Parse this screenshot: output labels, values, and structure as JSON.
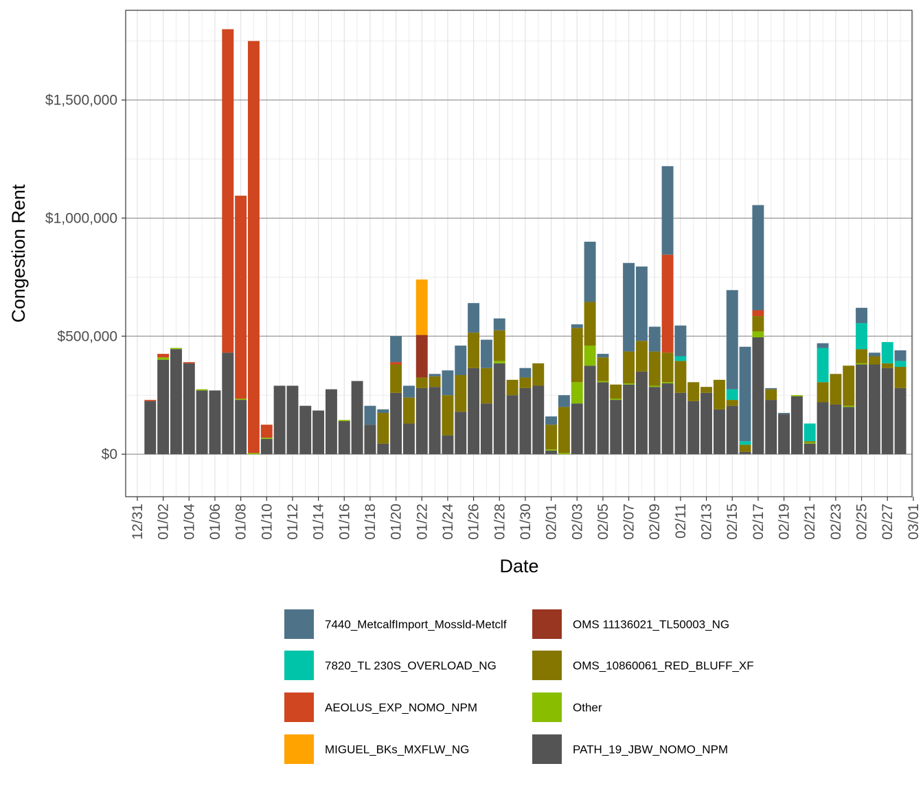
{
  "chart_data": {
    "type": "bar",
    "stacked": true,
    "xlabel": "Date",
    "ylabel": "Congestion Rent",
    "ylim": [
      -180000,
      1880000
    ],
    "yticks": [
      0,
      500000,
      1000000,
      1500000
    ],
    "ytick_labels": [
      "$0",
      "$500,000",
      "$1,000,000",
      "$1,500,000"
    ],
    "x_range_days": [
      -0.9,
      59.9
    ],
    "xticks": [
      0,
      2,
      4,
      6,
      8,
      10,
      12,
      14,
      16,
      18,
      20,
      22,
      24,
      26,
      28,
      30,
      32,
      34,
      36,
      38,
      40,
      42,
      44,
      46,
      48,
      50,
      52,
      54,
      56,
      58,
      60
    ],
    "xtick_labels": [
      "12/31",
      "01/02",
      "01/04",
      "01/06",
      "01/08",
      "01/10",
      "01/12",
      "01/14",
      "01/16",
      "01/18",
      "01/20",
      "01/22",
      "01/24",
      "01/26",
      "01/28",
      "01/30",
      "02/01",
      "02/03",
      "02/05",
      "02/07",
      "02/09",
      "02/11",
      "02/13",
      "02/15",
      "02/17",
      "02/19",
      "02/21",
      "02/23",
      "02/25",
      "02/27",
      "03/01"
    ],
    "grid": true,
    "legend_position": "bottom",
    "colors": {
      "7440_MetcalfImport_Mossld-Metclf": "#4e7389",
      "7820_TL 230S_OVERLOAD_NG": "#00c4aa",
      "AEOLUS_EXP_NOMO_NPM": "#d04621",
      "MIGUEL_BKs_MXFLW_NG": "#ffa300",
      "OMS 11136021_TL50003_NG": "#983622",
      "OMS_10860061_RED_BLUFF_XF": "#857600",
      "Other": "#88bd00",
      "PATH_19_JBW_NOMO_NPM": "#545454"
    },
    "legend_entries": [
      "7440_MetcalfImport_Mossld-Metclf",
      "7820_TL 230S_OVERLOAD_NG",
      "AEOLUS_EXP_NOMO_NPM",
      "MIGUEL_BKs_MXFLW_NG",
      "OMS 11136021_TL50003_NG",
      "OMS_10860061_RED_BLUFF_XF",
      "Other",
      "PATH_19_JBW_NOMO_NPM"
    ],
    "stack_order": [
      "PATH_19_JBW_NOMO_NPM",
      "Other",
      "OMS_10860061_RED_BLUFF_XF",
      "OMS 11136021_TL50003_NG",
      "MIGUEL_BKs_MXFLW_NG",
      "AEOLUS_EXP_NOMO_NPM",
      "7820_TL 230S_OVERLOAD_NG",
      "7440_MetcalfImport_Mossld-Metclf"
    ],
    "dates": [
      "01/01",
      "01/02",
      "01/03",
      "01/04",
      "01/05",
      "01/06",
      "01/07",
      "01/08",
      "01/09",
      "01/10",
      "01/11",
      "01/12",
      "01/13",
      "01/14",
      "01/15",
      "01/16",
      "01/17",
      "01/18",
      "01/19",
      "01/20",
      "01/21",
      "01/22",
      "01/23",
      "01/24",
      "01/25",
      "01/26",
      "01/27",
      "01/28",
      "01/29",
      "01/30",
      "01/31",
      "02/01",
      "02/02",
      "02/03",
      "02/04",
      "02/05",
      "02/06",
      "02/07",
      "02/08",
      "02/09",
      "02/10",
      "02/11",
      "02/12",
      "02/13",
      "02/14",
      "02/15",
      "02/16",
      "02/17",
      "02/18",
      "02/19",
      "02/20",
      "02/21",
      "02/22",
      "02/23",
      "02/24",
      "02/25",
      "02/26",
      "02/27",
      "02/28"
    ],
    "series": [
      {
        "name": "PATH_19_JBW_NOMO_NPM",
        "values": [
          225000,
          400000,
          445000,
          385000,
          270000,
          270000,
          430000,
          230000,
          0,
          65000,
          290000,
          290000,
          205000,
          185000,
          275000,
          140000,
          310000,
          125000,
          45000,
          260000,
          130000,
          280000,
          285000,
          80000,
          180000,
          365000,
          215000,
          385000,
          250000,
          280000,
          290000,
          15000,
          0,
          215000,
          375000,
          305000,
          230000,
          295000,
          350000,
          285000,
          300000,
          260000,
          225000,
          260000,
          190000,
          205000,
          10000,
          495000,
          230000,
          170000,
          245000,
          45000,
          220000,
          210000,
          200000,
          380000,
          380000,
          365000,
          280000
        ]
      },
      {
        "name": "Other",
        "values": [
          0,
          10000,
          5000,
          0,
          5000,
          0,
          0,
          5000,
          5000,
          5000,
          0,
          0,
          0,
          0,
          0,
          5000,
          0,
          0,
          0,
          0,
          0,
          0,
          0,
          0,
          0,
          0,
          0,
          10000,
          0,
          0,
          0,
          5000,
          5000,
          90000,
          85000,
          5000,
          5000,
          5000,
          0,
          5000,
          5000,
          0,
          0,
          0,
          0,
          0,
          0,
          25000,
          0,
          0,
          5000,
          5000,
          0,
          0,
          5000,
          5000,
          0,
          0,
          0
        ]
      },
      {
        "name": "OMS_10860061_RED_BLUFF_XF",
        "values": [
          0,
          0,
          0,
          0,
          0,
          0,
          0,
          0,
          0,
          0,
          0,
          0,
          0,
          0,
          0,
          0,
          0,
          0,
          130000,
          120000,
          110000,
          45000,
          45000,
          170000,
          155000,
          150000,
          150000,
          130000,
          65000,
          45000,
          95000,
          105000,
          195000,
          230000,
          185000,
          100000,
          60000,
          135000,
          130000,
          145000,
          125000,
          135000,
          80000,
          25000,
          125000,
          25000,
          30000,
          65000,
          45000,
          0,
          0,
          5000,
          85000,
          130000,
          170000,
          60000,
          35000,
          20000,
          90000
        ]
      },
      {
        "name": "OMS 11136021_TL50003_NG",
        "values": [
          0,
          0,
          0,
          0,
          0,
          0,
          0,
          0,
          0,
          0,
          0,
          0,
          0,
          0,
          0,
          0,
          0,
          0,
          0,
          0,
          0,
          180000,
          0,
          0,
          0,
          0,
          0,
          0,
          0,
          0,
          0,
          0,
          0,
          0,
          0,
          0,
          0,
          0,
          0,
          0,
          0,
          0,
          0,
          0,
          0,
          0,
          0,
          0,
          0,
          0,
          0,
          0,
          0,
          0,
          0,
          0,
          0,
          0,
          0
        ]
      },
      {
        "name": "MIGUEL_BKs_MXFLW_NG",
        "values": [
          0,
          0,
          0,
          0,
          0,
          0,
          0,
          0,
          0,
          0,
          0,
          0,
          0,
          0,
          0,
          0,
          0,
          0,
          0,
          0,
          0,
          235000,
          0,
          0,
          0,
          0,
          0,
          0,
          0,
          0,
          0,
          0,
          0,
          0,
          0,
          0,
          0,
          0,
          0,
          0,
          0,
          0,
          0,
          0,
          0,
          0,
          0,
          0,
          0,
          0,
          0,
          0,
          0,
          0,
          0,
          0,
          0,
          0,
          0
        ]
      },
      {
        "name": "AEOLUS_EXP_NOMO_NPM",
        "values": [
          5000,
          15000,
          0,
          5000,
          0,
          0,
          1370000,
          860000,
          1745000,
          55000,
          0,
          0,
          0,
          0,
          0,
          0,
          0,
          0,
          0,
          10000,
          0,
          0,
          0,
          0,
          0,
          0,
          0,
          0,
          0,
          0,
          0,
          0,
          0,
          0,
          0,
          0,
          0,
          0,
          0,
          0,
          415000,
          0,
          0,
          0,
          0,
          0,
          0,
          25000,
          0,
          0,
          0,
          0,
          0,
          0,
          0,
          0,
          0,
          0,
          0
        ]
      },
      {
        "name": "7820_TL 230S_OVERLOAD_NG",
        "values": [
          0,
          0,
          0,
          0,
          0,
          0,
          0,
          0,
          0,
          0,
          0,
          0,
          0,
          0,
          0,
          0,
          0,
          0,
          0,
          0,
          0,
          0,
          0,
          0,
          0,
          0,
          0,
          0,
          0,
          0,
          0,
          0,
          0,
          0,
          0,
          0,
          0,
          0,
          0,
          0,
          0,
          20000,
          0,
          0,
          0,
          45000,
          15000,
          0,
          0,
          0,
          0,
          75000,
          145000,
          0,
          0,
          110000,
          0,
          90000,
          25000
        ]
      },
      {
        "name": "7440_MetcalfImport_Mossld-Metclf",
        "values": [
          0,
          0,
          0,
          0,
          0,
          0,
          0,
          0,
          0,
          0,
          0,
          0,
          0,
          0,
          0,
          0,
          0,
          80000,
          15000,
          110000,
          50000,
          0,
          10000,
          105000,
          125000,
          125000,
          120000,
          50000,
          0,
          40000,
          0,
          35000,
          50000,
          15000,
          255000,
          15000,
          0,
          375000,
          315000,
          105000,
          375000,
          130000,
          0,
          0,
          0,
          420000,
          400000,
          445000,
          5000,
          5000,
          0,
          0,
          20000,
          0,
          0,
          65000,
          15000,
          0,
          45000
        ]
      }
    ]
  }
}
